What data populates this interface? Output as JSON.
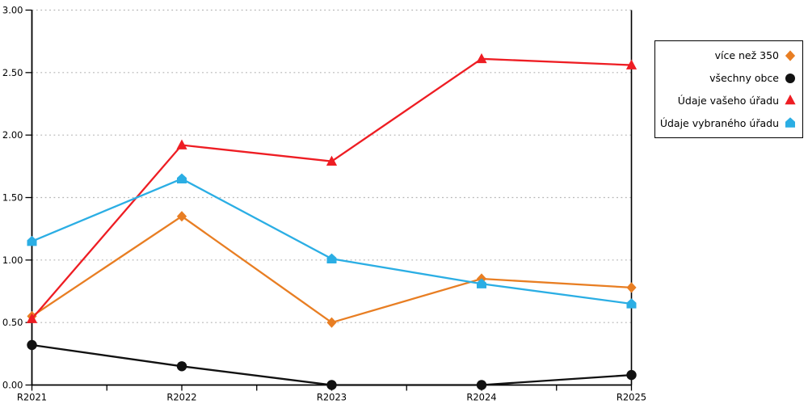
{
  "chart_data": {
    "type": "line",
    "title": "",
    "xlabel": "",
    "ylabel": "",
    "categories": [
      "R2021",
      "R2022",
      "R2023",
      "R2024",
      "R2025"
    ],
    "series": [
      {
        "name": "více než 350",
        "color": "#e87e23",
        "marker": "diamond",
        "values": [
          0.55,
          1.35,
          0.5,
          0.85,
          0.78
        ]
      },
      {
        "name": "všechny obce",
        "color": "#111111",
        "marker": "circle",
        "values": [
          0.32,
          0.15,
          0.0,
          0.0,
          0.08
        ]
      },
      {
        "name": "Údaje vašeho úřadu",
        "color": "#ee1d23",
        "marker": "triangle",
        "values": [
          0.53,
          1.92,
          1.79,
          2.61,
          2.56
        ]
      },
      {
        "name": "Údaje vybraného úřadu",
        "color": "#2baee4",
        "marker": "pentagon",
        "values": [
          1.15,
          1.65,
          1.01,
          0.81,
          0.65
        ]
      }
    ],
    "ylim": [
      0,
      3
    ],
    "y_tick_step": 0.5,
    "y_tick_labels": [
      "0.00",
      "0.50",
      "1.00",
      "1.50",
      "2.00",
      "2.50",
      "3.00"
    ],
    "x_minor_ticks_between_labels": true,
    "grid": "horizontal-dotted",
    "grid_color": "#b3b3b3",
    "axis_color": "#000000",
    "right_border_at_last_category": true,
    "legend_position": "top-right"
  }
}
